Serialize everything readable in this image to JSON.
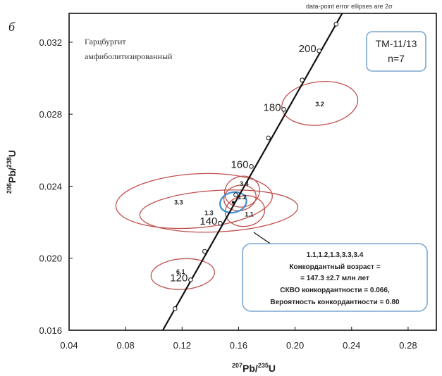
{
  "panel_label": "б",
  "note": "data-point error ellipses are 2σ",
  "rock_name": [
    "Гарцбургит",
    "амфиболитизированный"
  ],
  "sample_box": {
    "sample": "TM-11/13",
    "n": "n=7"
  },
  "result_box": {
    "lines": [
      "1.1,1.2,1.3,3.3,3.4",
      "Конкордантный возраст =",
      "= 147.3 ±2.7 млн  лет",
      "СКВО конкордантности = 0.066,",
      "Вероятность конкордантности = 0.80"
    ]
  },
  "colors": {
    "concordia": "#111111",
    "ellipse": "#c0504d",
    "mean_ellipse": "#3a8fd0",
    "box_border": "#7aa7d0"
  },
  "chart_data": {
    "type": "scatter",
    "title": "",
    "xlabel": "207Pb/235U",
    "ylabel": "206Pb/238U",
    "xlim": [
      0.04,
      0.3
    ],
    "ylim": [
      0.016,
      0.0336
    ],
    "x_ticks": [
      "0.04",
      "0.08",
      "0.12",
      "0.16",
      "0.20",
      "0.24",
      "0.28"
    ],
    "x_tick_values": [
      0.04,
      0.08,
      0.12,
      0.16,
      0.2,
      0.24,
      0.28
    ],
    "y_ticks": [
      "0.016",
      "0.020",
      "0.024",
      "0.028",
      "0.032"
    ],
    "y_tick_values": [
      0.016,
      0.02,
      0.024,
      0.028,
      0.032
    ],
    "grid": false,
    "concordia": {
      "age_labels": [
        {
          "age": "120",
          "x": 0.126,
          "y": 0.0188
        },
        {
          "age": "140",
          "x": 0.147,
          "y": 0.02194
        },
        {
          "age": "160",
          "x": 0.169,
          "y": 0.0251
        },
        {
          "age": "180",
          "x": 0.192,
          "y": 0.02827
        },
        {
          "age": "200",
          "x": 0.217,
          "y": 0.03152
        }
      ],
      "markers": [
        {
          "x": 0.115,
          "y": 0.0172
        },
        {
          "x": 0.126,
          "y": 0.0188
        },
        {
          "x": 0.136,
          "y": 0.02038
        },
        {
          "x": 0.147,
          "y": 0.02194
        },
        {
          "x": 0.158,
          "y": 0.02352
        },
        {
          "x": 0.169,
          "y": 0.0251
        },
        {
          "x": 0.181,
          "y": 0.02668
        },
        {
          "x": 0.192,
          "y": 0.02827
        },
        {
          "x": 0.205,
          "y": 0.0299
        },
        {
          "x": 0.217,
          "y": 0.03152
        },
        {
          "x": 0.229,
          "y": 0.033
        }
      ]
    },
    "ellipses": [
      {
        "label": "3.2",
        "cx": 0.2175,
        "cy": 0.0286,
        "rx": 0.027,
        "ry": 0.0012,
        "tilt": 7
      },
      {
        "label": "6.1",
        "cx": 0.1205,
        "cy": 0.01912,
        "rx": 0.0225,
        "ry": 0.00085,
        "tilt": 4
      },
      {
        "label": "3.3",
        "cx": 0.1285,
        "cy": 0.02318,
        "rx": 0.0555,
        "ry": 0.0015,
        "tilt": 4
      },
      {
        "label": "1.3",
        "cx": 0.146,
        "cy": 0.02262,
        "rx": 0.056,
        "ry": 0.00115,
        "tilt": 3
      },
      {
        "label": "3.4",
        "cx": 0.1625,
        "cy": 0.0237,
        "rx": 0.0125,
        "ry": 0.00085,
        "tilt": 15
      },
      {
        "label": "1.2",
        "cx": 0.161,
        "cy": 0.02335,
        "rx": 0.0115,
        "ry": 0.0007,
        "tilt": 12
      },
      {
        "label": "1.1",
        "cx": 0.1645,
        "cy": 0.02262,
        "rx": 0.014,
        "ry": 0.00085,
        "tilt": 8
      }
    ],
    "mean_ellipse": {
      "cx": 0.1562,
      "cy": 0.0231,
      "rx": 0.0095,
      "ry": 0.00056,
      "tilt": 14
    }
  }
}
